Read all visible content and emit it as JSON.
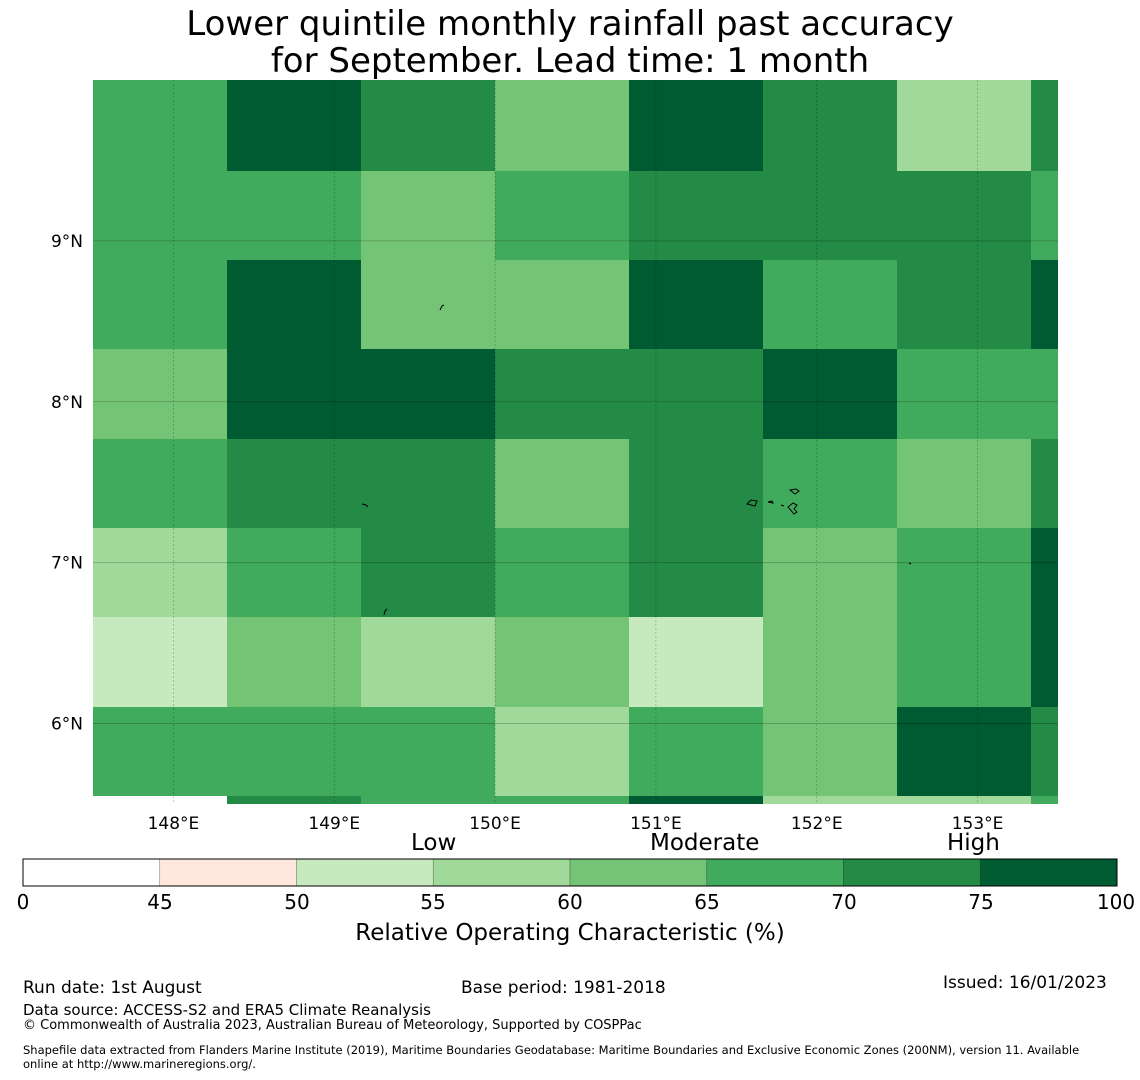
{
  "title_line1": "Lower quintile monthly rainfall past accuracy",
  "title_line2": "for September. Lead time: 1 month",
  "map": {
    "lon_min": 147.5,
    "lon_max": 153.5,
    "lat_min": 5.5,
    "lat_max": 10.0,
    "x_ticks": [
      148,
      149,
      150,
      151,
      152,
      153
    ],
    "x_tick_labels": [
      "148°E",
      "149°E",
      "150°E",
      "151°E",
      "152°E",
      "153°E"
    ],
    "y_ticks": [
      9,
      8,
      7,
      6
    ],
    "y_tick_labels": [
      "9°N",
      "8°N",
      "7°N",
      "6°N"
    ],
    "cells": [
      [
        65,
        75,
        70,
        60,
        75,
        70,
        55,
        70
      ],
      [
        65,
        65,
        60,
        65,
        70,
        70,
        70,
        65
      ],
      [
        65,
        75,
        60,
        60,
        75,
        65,
        70,
        75
      ],
      [
        60,
        75,
        75,
        70,
        70,
        75,
        65,
        65
      ],
      [
        65,
        70,
        70,
        60,
        70,
        65,
        60,
        70
      ],
      [
        55,
        65,
        70,
        65,
        70,
        60,
        65,
        75
      ],
      [
        50,
        60,
        55,
        60,
        50,
        60,
        65,
        75
      ],
      [
        65,
        65,
        65,
        55,
        65,
        60,
        75,
        70
      ],
      [
        null,
        70,
        65,
        65,
        75,
        55,
        55,
        65
      ]
    ]
  },
  "colorbar": {
    "category_labels": [
      "Low",
      "Moderate",
      "High"
    ],
    "boundaries": [
      0,
      45,
      50,
      55,
      60,
      65,
      70,
      75,
      100
    ],
    "tick_labels": [
      "0",
      "45",
      "50",
      "55",
      "60",
      "65",
      "70",
      "75",
      "100"
    ],
    "colors": [
      "#ffffff",
      "#fee8de",
      "#c7e9c0",
      "#a1d99b",
      "#74c476",
      "#41ab5d",
      "#238b45",
      "#005a32"
    ],
    "label": "Relative Operating Characteristic (%)"
  },
  "footer": {
    "run_date": "Run date: 1st August",
    "base_period": "Base period: 1981-2018",
    "issued": "Issued: 16/01/2023",
    "data_source": "Data source: ACCESS-S2 and ERA5 Climate Reanalysis",
    "copyright": "© Commonwealth of Australia 2023, Australian Bureau of Meteorology, Supported by COSPPac",
    "shapefile_line1": "Shapefile data extracted from Flanders Marine Institute (2019), Maritime Boundaries Geodatabase: Maritime Boundaries and Exclusive Economic Zones (200NM), version 11. Available",
    "shapefile_line2": "online at http://www.marineregions.org/."
  }
}
